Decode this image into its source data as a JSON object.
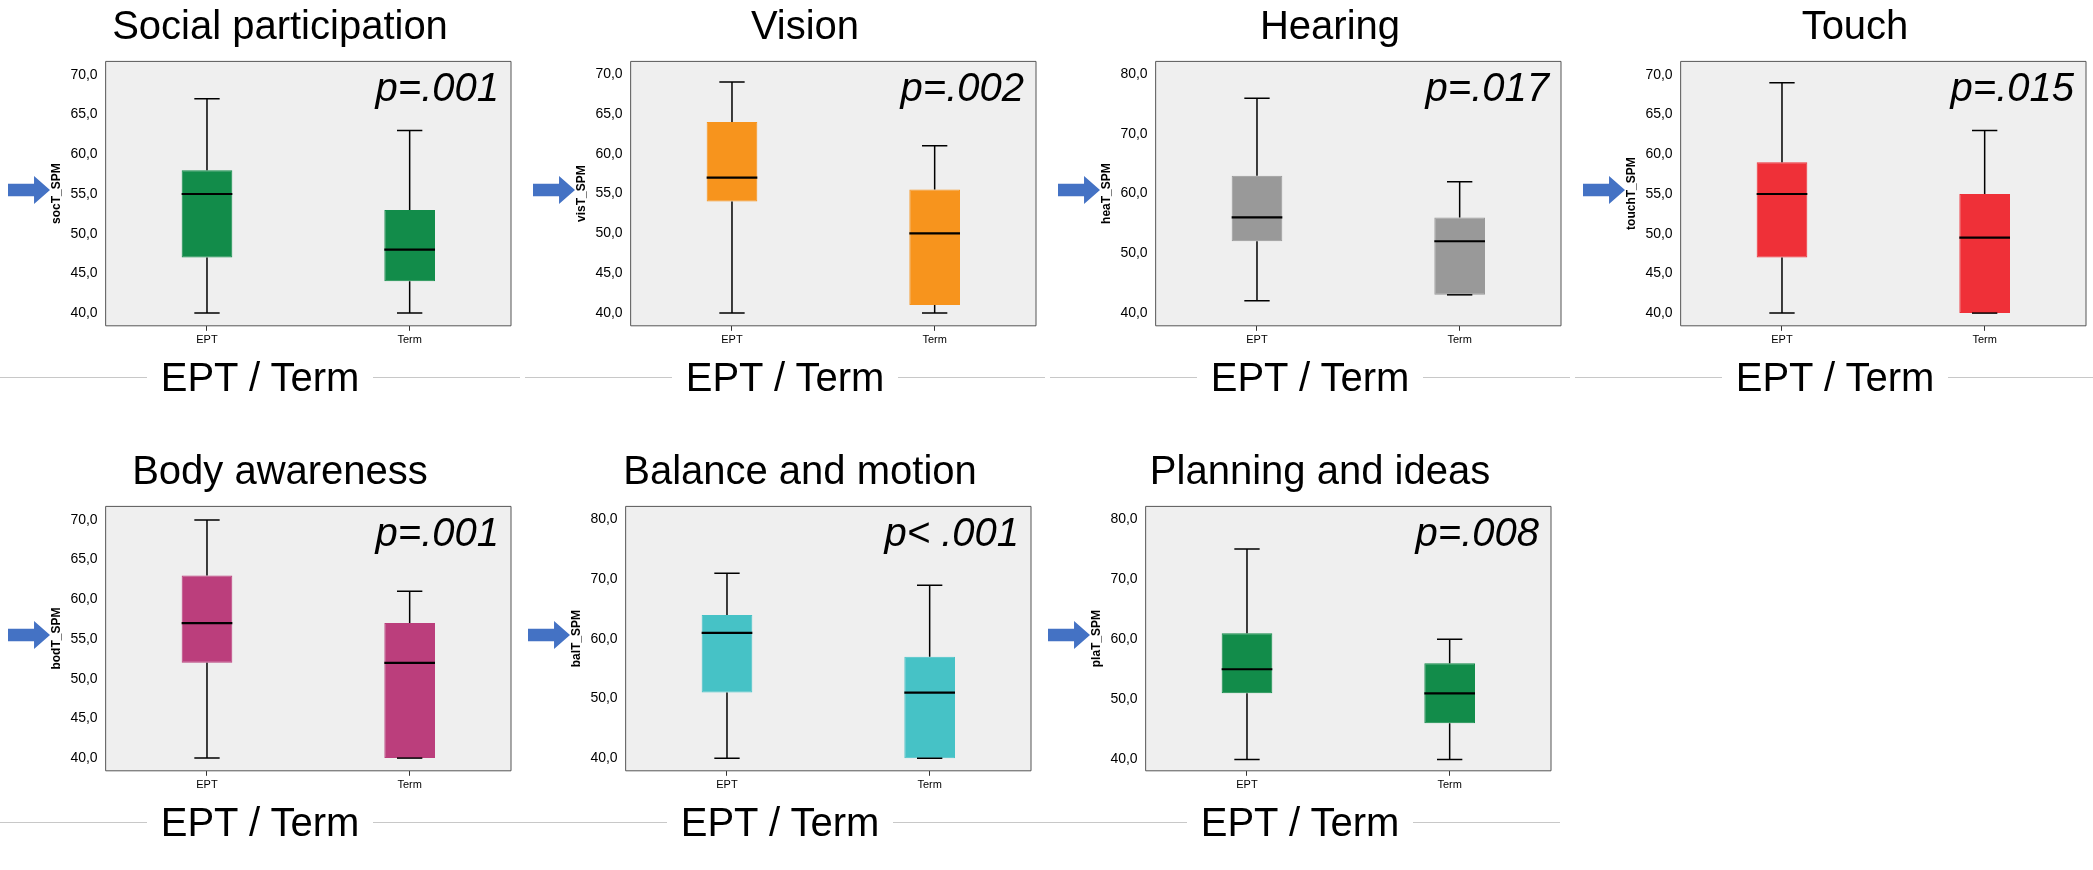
{
  "chart_data": [
    {
      "type": "box",
      "title": "Social participation",
      "xlabel": "EPT / Term",
      "ylabel": "socT_SPM",
      "annotations": [
        "p=.001"
      ],
      "categories": [
        "EPT",
        "Term"
      ],
      "ylim": [
        38.4,
        71.7
      ],
      "yticks": [
        {
          "value": 40,
          "label": "40,0"
        },
        {
          "value": 45,
          "label": "45,0"
        },
        {
          "value": 50,
          "label": "50,0"
        },
        {
          "value": 55,
          "label": "55,0"
        },
        {
          "value": 60,
          "label": "60,0"
        },
        {
          "value": 65,
          "label": "65,0"
        },
        {
          "value": 70,
          "label": "70,0"
        }
      ],
      "series": [
        {
          "color": "#128c4a",
          "boxes": [
            {
              "low": 40,
              "q1": 47,
              "median": 55,
              "q3": 58,
              "high": 67
            },
            {
              "low": 40,
              "q1": 44,
              "median": 48,
              "q3": 53,
              "high": 63
            }
          ]
        }
      ]
    },
    {
      "type": "box",
      "title": "Vision",
      "xlabel": "EPT / Term",
      "ylabel": "visT_SPM",
      "annotations": [
        "p=.002"
      ],
      "categories": [
        "EPT",
        "Term"
      ],
      "ylim": [
        38.4,
        71.6
      ],
      "yticks": [
        {
          "value": 40,
          "label": "40,0"
        },
        {
          "value": 45,
          "label": "45,0"
        },
        {
          "value": 50,
          "label": "50,0"
        },
        {
          "value": 55,
          "label": "55,0"
        },
        {
          "value": 60,
          "label": "60,0"
        },
        {
          "value": 65,
          "label": "65,0"
        },
        {
          "value": 70,
          "label": "70,0"
        }
      ],
      "series": [
        {
          "color": "#f7941d",
          "boxes": [
            {
              "low": 40,
              "q1": 54,
              "median": 57,
              "q3": 64,
              "high": 69
            },
            {
              "low": 40,
              "q1": 41,
              "median": 50,
              "q3": 55.5,
              "high": 61
            }
          ]
        }
      ]
    },
    {
      "type": "box",
      "title": "Hearing",
      "xlabel": "EPT / Term",
      "ylabel": "heaT_SPM",
      "annotations": [
        "p=.017"
      ],
      "categories": [
        "EPT",
        "Term"
      ],
      "ylim": [
        37.8,
        82.2
      ],
      "yticks": [
        {
          "value": 40,
          "label": "40,0"
        },
        {
          "value": 50,
          "label": "50,0"
        },
        {
          "value": 60,
          "label": "60,0"
        },
        {
          "value": 70,
          "label": "70,0"
        },
        {
          "value": 80,
          "label": "80,0"
        }
      ],
      "series": [
        {
          "color": "#999999",
          "boxes": [
            {
              "low": 42,
              "q1": 52,
              "median": 56,
              "q3": 63,
              "high": 76
            },
            {
              "low": 43,
              "q1": 43,
              "median": 52,
              "q3": 56,
              "high": 62
            }
          ]
        }
      ]
    },
    {
      "type": "box",
      "title": "Touch",
      "xlabel": "EPT / Term",
      "ylabel": "touchT_SPM",
      "annotations": [
        "p=.015"
      ],
      "categories": [
        "EPT",
        "Term"
      ],
      "ylim": [
        38.4,
        71.7
      ],
      "yticks": [
        {
          "value": 40,
          "label": "40,0"
        },
        {
          "value": 45,
          "label": "45,0"
        },
        {
          "value": 50,
          "label": "50,0"
        },
        {
          "value": 55,
          "label": "55,0"
        },
        {
          "value": 60,
          "label": "60,0"
        },
        {
          "value": 65,
          "label": "65,0"
        },
        {
          "value": 70,
          "label": "70,0"
        }
      ],
      "series": [
        {
          "color": "#ef3038",
          "boxes": [
            {
              "low": 40,
              "q1": 47,
              "median": 55,
              "q3": 59,
              "high": 69
            },
            {
              "low": 40,
              "q1": 40,
              "median": 49.5,
              "q3": 55,
              "high": 63
            }
          ]
        }
      ]
    },
    {
      "type": "box",
      "title": "Body awareness",
      "xlabel": "EPT / Term",
      "ylabel": "bodT_SPM",
      "annotations": [
        "p=.001"
      ],
      "categories": [
        "EPT",
        "Term"
      ],
      "ylim": [
        38.4,
        71.7
      ],
      "yticks": [
        {
          "value": 40,
          "label": "40,0"
        },
        {
          "value": 45,
          "label": "45,0"
        },
        {
          "value": 50,
          "label": "50,0"
        },
        {
          "value": 55,
          "label": "55,0"
        },
        {
          "value": 60,
          "label": "60,0"
        },
        {
          "value": 65,
          "label": "65,0"
        },
        {
          "value": 70,
          "label": "70,0"
        }
      ],
      "series": [
        {
          "color": "#bb3e7c",
          "boxes": [
            {
              "low": 40,
              "q1": 52,
              "median": 57,
              "q3": 63,
              "high": 70
            },
            {
              "low": 40,
              "q1": 40,
              "median": 52,
              "q3": 57,
              "high": 61
            }
          ]
        }
      ]
    },
    {
      "type": "box",
      "title": "Balance and motion",
      "xlabel": "EPT / Term",
      "ylabel": "balT_SPM",
      "annotations": [
        "p< .001"
      ],
      "categories": [
        "EPT",
        "Term"
      ],
      "ylim": [
        37.9,
        82.2
      ],
      "yticks": [
        {
          "value": 40,
          "label": "40,0"
        },
        {
          "value": 50,
          "label": "50,0"
        },
        {
          "value": 60,
          "label": "60,0"
        },
        {
          "value": 70,
          "label": "70,0"
        },
        {
          "value": 80,
          "label": "80,0"
        }
      ],
      "series": [
        {
          "color": "#46c2c6",
          "boxes": [
            {
              "low": 40,
              "q1": 51,
              "median": 61,
              "q3": 64,
              "high": 71
            },
            {
              "low": 40,
              "q1": 40,
              "median": 51,
              "q3": 57,
              "high": 69
            }
          ]
        }
      ]
    },
    {
      "type": "box",
      "title": "Planning and ideas",
      "xlabel": "EPT / Term",
      "ylabel": "plaT_SPM",
      "annotations": [
        "p=.008"
      ],
      "categories": [
        "EPT",
        "Term"
      ],
      "ylim": [
        38.1,
        82.1
      ],
      "yticks": [
        {
          "value": 40,
          "label": "40,0"
        },
        {
          "value": 50,
          "label": "50,0"
        },
        {
          "value": 60,
          "label": "60,0"
        },
        {
          "value": 70,
          "label": "70,0"
        },
        {
          "value": 80,
          "label": "80,0"
        }
      ],
      "series": [
        {
          "color": "#128c4a",
          "boxes": [
            {
              "low": 40,
              "q1": 51,
              "median": 55,
              "q3": 61,
              "high": 75
            },
            {
              "low": 40,
              "q1": 46,
              "median": 51,
              "q3": 56,
              "high": 60
            }
          ]
        }
      ]
    }
  ]
}
